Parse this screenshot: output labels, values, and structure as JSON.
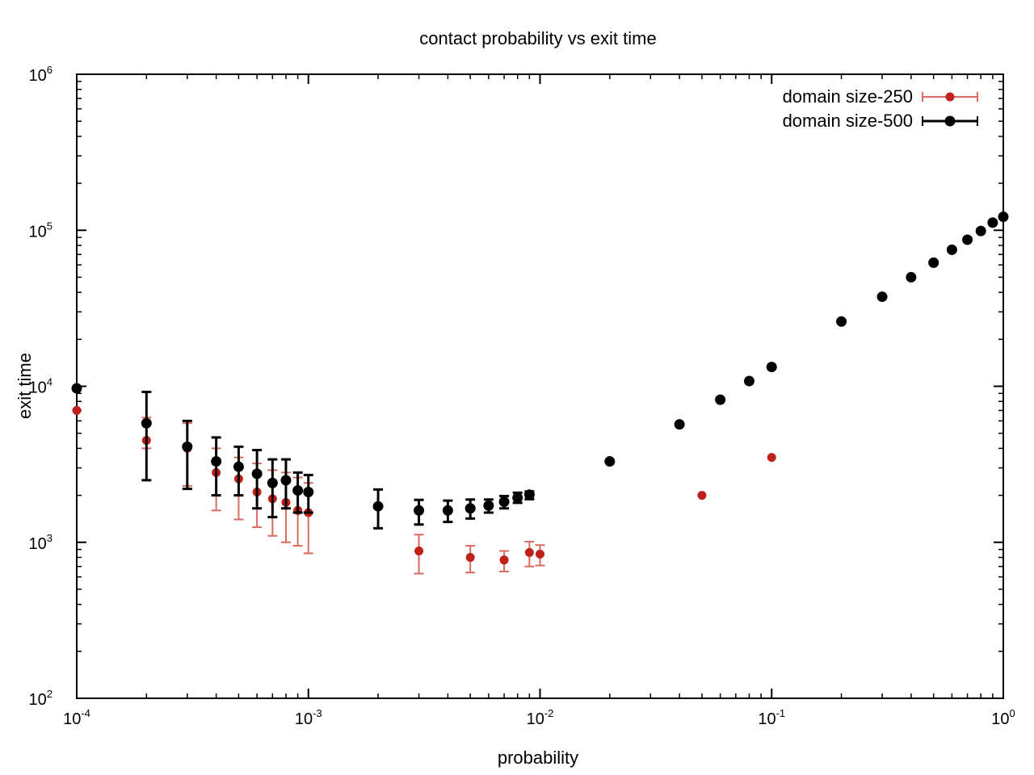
{
  "chart_data": {
    "type": "scatter",
    "title": "contact probability vs exit time",
    "xlabel": "probability",
    "ylabel": "exit time",
    "xscale": "log",
    "yscale": "log",
    "xlim": [
      0.0001,
      1
    ],
    "ylim": [
      100,
      1000000
    ],
    "x_ticks": [
      {
        "base": "10",
        "exp": "-4",
        "value": 0.0001
      },
      {
        "base": "10",
        "exp": "-3",
        "value": 0.001
      },
      {
        "base": "10",
        "exp": "-2",
        "value": 0.01
      },
      {
        "base": "10",
        "exp": "-1",
        "value": 0.1
      },
      {
        "base": "10",
        "exp": "0",
        "value": 1
      }
    ],
    "y_ticks": [
      {
        "base": "10",
        "exp": "2",
        "value": 100
      },
      {
        "base": "10",
        "exp": "3",
        "value": 1000
      },
      {
        "base": "10",
        "exp": "4",
        "value": 10000
      },
      {
        "base": "10",
        "exp": "5",
        "value": 100000
      },
      {
        "base": "10",
        "exp": "6",
        "value": 1000000
      }
    ],
    "grid": false,
    "legend_position": "top-right",
    "series": [
      {
        "name": "domain size-250",
        "color": "#c0201c",
        "error_color": "#d96a60",
        "points": [
          {
            "x": 0.0001,
            "y": 7000,
            "lo": 7000,
            "hi": 7000
          },
          {
            "x": 0.0002,
            "y": 4500,
            "lo": 4000,
            "hi": 6300
          },
          {
            "x": 0.0003,
            "y": 4000,
            "lo": 2300,
            "hi": 5800
          },
          {
            "x": 0.0004,
            "y": 2800,
            "lo": 1600,
            "hi": 4000
          },
          {
            "x": 0.0005,
            "y": 2550,
            "lo": 1400,
            "hi": 3500
          },
          {
            "x": 0.0006,
            "y": 2100,
            "lo": 1250,
            "hi": 3200
          },
          {
            "x": 0.0007,
            "y": 1900,
            "lo": 1100,
            "hi": 2900
          },
          {
            "x": 0.0008,
            "y": 1800,
            "lo": 1000,
            "hi": 2800
          },
          {
            "x": 0.0009,
            "y": 1600,
            "lo": 950,
            "hi": 2600
          },
          {
            "x": 0.001,
            "y": 1550,
            "lo": 850,
            "hi": 2400
          },
          {
            "x": 0.003,
            "y": 880,
            "lo": 630,
            "hi": 1120
          },
          {
            "x": 0.005,
            "y": 800,
            "lo": 640,
            "hi": 950
          },
          {
            "x": 0.007,
            "y": 770,
            "lo": 650,
            "hi": 880
          },
          {
            "x": 0.009,
            "y": 860,
            "lo": 700,
            "hi": 1010
          },
          {
            "x": 0.01,
            "y": 840,
            "lo": 710,
            "hi": 960
          },
          {
            "x": 0.05,
            "y": 2000,
            "lo": 2000,
            "hi": 2000
          },
          {
            "x": 0.1,
            "y": 3500,
            "lo": 3500,
            "hi": 3500
          }
        ]
      },
      {
        "name": "domain size-500",
        "color": "#000000",
        "error_color": "#000000",
        "points": [
          {
            "x": 0.0001,
            "y": 9700,
            "lo": 9700,
            "hi": 9700
          },
          {
            "x": 0.0002,
            "y": 5800,
            "lo": 2500,
            "hi": 9200
          },
          {
            "x": 0.0003,
            "y": 4100,
            "lo": 2200,
            "hi": 6000
          },
          {
            "x": 0.0004,
            "y": 3300,
            "lo": 2000,
            "hi": 4700
          },
          {
            "x": 0.0005,
            "y": 3050,
            "lo": 2000,
            "hi": 4100
          },
          {
            "x": 0.0006,
            "y": 2750,
            "lo": 1650,
            "hi": 3900
          },
          {
            "x": 0.0007,
            "y": 2400,
            "lo": 1450,
            "hi": 3400
          },
          {
            "x": 0.0008,
            "y": 2500,
            "lo": 1650,
            "hi": 3400
          },
          {
            "x": 0.0009,
            "y": 2150,
            "lo": 1550,
            "hi": 2800
          },
          {
            "x": 0.001,
            "y": 2100,
            "lo": 1550,
            "hi": 2700
          },
          {
            "x": 0.002,
            "y": 1700,
            "lo": 1230,
            "hi": 2180
          },
          {
            "x": 0.003,
            "y": 1600,
            "lo": 1300,
            "hi": 1870
          },
          {
            "x": 0.004,
            "y": 1600,
            "lo": 1350,
            "hi": 1850
          },
          {
            "x": 0.005,
            "y": 1650,
            "lo": 1420,
            "hi": 1880
          },
          {
            "x": 0.006,
            "y": 1720,
            "lo": 1550,
            "hi": 1880
          },
          {
            "x": 0.007,
            "y": 1820,
            "lo": 1650,
            "hi": 1980
          },
          {
            "x": 0.008,
            "y": 1930,
            "lo": 1790,
            "hi": 2080
          },
          {
            "x": 0.009,
            "y": 2020,
            "lo": 1890,
            "hi": 2120
          },
          {
            "x": 0.02,
            "y": 3300,
            "lo": 3300,
            "hi": 3300
          },
          {
            "x": 0.04,
            "y": 5700,
            "lo": 5700,
            "hi": 5700
          },
          {
            "x": 0.06,
            "y": 8200,
            "lo": 8200,
            "hi": 8200
          },
          {
            "x": 0.08,
            "y": 10800,
            "lo": 10800,
            "hi": 10800
          },
          {
            "x": 0.1,
            "y": 13300,
            "lo": 13300,
            "hi": 13300
          },
          {
            "x": 0.2,
            "y": 26000,
            "lo": 26000,
            "hi": 26000
          },
          {
            "x": 0.3,
            "y": 37500,
            "lo": 37500,
            "hi": 37500
          },
          {
            "x": 0.4,
            "y": 50000,
            "lo": 50000,
            "hi": 50000
          },
          {
            "x": 0.5,
            "y": 62000,
            "lo": 62000,
            "hi": 62000
          },
          {
            "x": 0.6,
            "y": 75000,
            "lo": 75000,
            "hi": 75000
          },
          {
            "x": 0.7,
            "y": 87000,
            "lo": 87000,
            "hi": 87000
          },
          {
            "x": 0.8,
            "y": 99000,
            "lo": 99000,
            "hi": 99000
          },
          {
            "x": 0.9,
            "y": 112000,
            "lo": 112000,
            "hi": 112000
          },
          {
            "x": 1.0,
            "y": 122000,
            "lo": 122000,
            "hi": 122000
          }
        ]
      }
    ]
  }
}
